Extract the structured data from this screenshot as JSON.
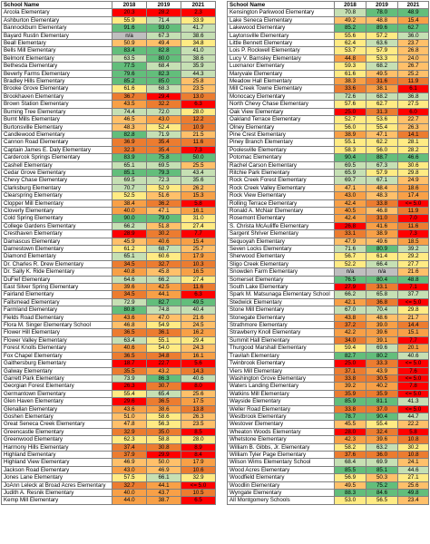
{
  "headers": {
    "name": "School Name",
    "y2018": "2018",
    "y2019": "2019",
    "y2021": "2021"
  },
  "colors": {
    "dark_green": "#63be7b",
    "light_green": "#c6e0b4",
    "yellow": "#ffeb84",
    "light_orange": "#ffc06a",
    "orange": "#f8a047",
    "dark_orange": "#ec7c30",
    "red": "#ff0000",
    "gray": "#bfbfbf"
  },
  "left": [
    {
      "name": "Arcola Elementary",
      "v18": "20.3",
      "v19": "28.2",
      "v21": "2.3"
    },
    {
      "name": "Ashburton Elementary",
      "v18": "55.9",
      "v19": "71.4",
      "v21": "33.9"
    },
    {
      "name": "Bannockburn Elementary",
      "v18": "91.6",
      "v19": "93.0",
      "v21": "41.7"
    },
    {
      "name": "Bayard Rustin Elementary",
      "v18": "n/a",
      "v19": "67.3",
      "v21": "38.6"
    },
    {
      "name": "Beall Elementary",
      "v18": "50.9",
      "v19": "49.4",
      "v21": "34.8"
    },
    {
      "name": "Bells Mill Elementary",
      "v18": "83.4",
      "v19": "82.8",
      "v21": "41.0"
    },
    {
      "name": "Belmont Elementary",
      "v18": "63.5",
      "v19": "80.0",
      "v21": "38.6"
    },
    {
      "name": "Bethesda Elementary",
      "v18": "77.5",
      "v19": "68.4",
      "v21": "35.9"
    },
    {
      "name": "Beverly Farms Elementary",
      "v18": "79.6",
      "v19": "82.3",
      "v21": "44.3"
    },
    {
      "name": "Bradley Hills Elementary",
      "v18": "85.2",
      "v19": "85.0",
      "v21": "25.8"
    },
    {
      "name": "Brooke Grove Elementary",
      "v18": "61.6",
      "v19": "68.3",
      "v21": "23.5"
    },
    {
      "name": "Brookhaven Elementary",
      "v18": "36.7",
      "v19": "29.4",
      "v21": "13.0"
    },
    {
      "name": "Brown Station Elementary",
      "v18": "43.5",
      "v19": "32.2",
      "v21": "6.3"
    },
    {
      "name": "Burning Tree Elementary",
      "v18": "74.4",
      "v19": "72.0",
      "v21": "28.0"
    },
    {
      "name": "Burnt Mills Elementary",
      "v18": "46.5",
      "v19": "43.0",
      "v21": "12.2"
    },
    {
      "name": "Burtonsville Elementary",
      "v18": "48.3",
      "v19": "52.4",
      "v21": "10.9"
    },
    {
      "name": "Candlewood Elementary",
      "v18": "82.8",
      "v19": "71.9",
      "v21": "21.5"
    },
    {
      "name": "Cannon Road Elementary",
      "v18": "36.9",
      "v19": "35.4",
      "v21": "11.6"
    },
    {
      "name": "Captain James E. Daly Elementary",
      "v18": "32.3",
      "v19": "35.4",
      "v21": "7.3"
    },
    {
      "name": "Cardercok Springs Elementary",
      "v18": "83.9",
      "v19": "75.8",
      "v21": "50.0"
    },
    {
      "name": "Cashell Elementary",
      "v18": "65.1",
      "v19": "69.5",
      "v21": "25.5"
    },
    {
      "name": "Cedar Grove Elementary",
      "v18": "85.1",
      "v19": "79.3",
      "v21": "43.4"
    },
    {
      "name": "Chevy Chase Elementary",
      "v18": "69.5",
      "v19": "72.3",
      "v21": "35.6"
    },
    {
      "name": "Clarksburg Elementary",
      "v18": "70.7",
      "v19": "52.9",
      "v21": "26.2"
    },
    {
      "name": "Clearspring Elementary",
      "v18": "52.5",
      "v19": "51.6",
      "v21": "15.3"
    },
    {
      "name": "Clopper Mill Elementary",
      "v18": "38.4",
      "v19": "36.2",
      "v21": "5.8"
    },
    {
      "name": "Cloverly Elementary",
      "v18": "40.0",
      "v19": "47.1",
      "v21": "16.1"
    },
    {
      "name": "Cold Spring Elementary",
      "v18": "90.0",
      "v19": "79.0",
      "v21": "31.0"
    },
    {
      "name": "College Gardens Elementary",
      "v18": "66.2",
      "v19": "51.8",
      "v21": "27.4"
    },
    {
      "name": "Cresthaven Elementary",
      "v18": "28.9",
      "v19": "30.2",
      "v21": "7.7"
    },
    {
      "name": "Damascus Elementary",
      "v18": "45.9",
      "v19": "40.6",
      "v21": "15.4"
    },
    {
      "name": "Darnestown Elementary",
      "v18": "61.2",
      "v19": "68.7",
      "v21": "25.7"
    },
    {
      "name": "Diamond Elementary",
      "v18": "65.1",
      "v19": "60.6",
      "v21": "17.9"
    },
    {
      "name": "Dr. Charles R. Drew Elementary",
      "v18": "34.5",
      "v19": "32.7",
      "v21": "10.3"
    },
    {
      "name": "Dr. Sally K. Ride Elementary",
      "v18": "40.8",
      "v19": "45.8",
      "v21": "16.5"
    },
    {
      "name": "DuFief Elementary",
      "v18": "64.6",
      "v19": "66.2",
      "v21": "27.4"
    },
    {
      "name": "East Silver Spring Elementary",
      "v18": "39.6",
      "v19": "42.5",
      "v21": "11.6"
    },
    {
      "name": "Fairland Elementary",
      "v18": "34.5",
      "v19": "44.1",
      "v21": "6.3"
    },
    {
      "name": "Fallsmead Elementary",
      "v18": "72.9",
      "v19": "82.7",
      "v21": "49.5"
    },
    {
      "name": "Farmland Elementary",
      "v18": "80.8",
      "v19": "74.8",
      "v21": "40.4"
    },
    {
      "name": "Fields Road Elementary",
      "v18": "43.6",
      "v19": "47.0",
      "v21": "21.6"
    },
    {
      "name": "Flora M. Singer Elementary School",
      "v18": "46.8",
      "v19": "54.9",
      "v21": "24.5"
    },
    {
      "name": "Flower Hill Elementary",
      "v18": "36.5",
      "v19": "36.1",
      "v21": "16.2"
    },
    {
      "name": "Flower Valley Elementary",
      "v18": "63.4",
      "v19": "55.1",
      "v21": "29.4"
    },
    {
      "name": "Forest Knolls Elementary",
      "v18": "40.6",
      "v19": "54.0",
      "v21": "24.3"
    },
    {
      "name": "Fox Chapel Elementary",
      "v18": "36.5",
      "v19": "34.8",
      "v21": "16.1"
    },
    {
      "name": "Gaithersburg Elementary",
      "v18": "18.7",
      "v19": "22.7",
      "v21": "5.6"
    },
    {
      "name": "Galway Elementary",
      "v18": "35.5",
      "v19": "43.2",
      "v21": "14.3"
    },
    {
      "name": "Garrett Park Elementary",
      "v18": "73.9",
      "v19": "86.3",
      "v21": "40.6"
    },
    {
      "name": "Georgian Forest Elementary",
      "v18": "26.3",
      "v19": "30.7",
      "v21": "8.0"
    },
    {
      "name": "Germantown Elementary",
      "v18": "55.4",
      "v19": "65.4",
      "v21": "25.6"
    },
    {
      "name": "Glen Haven Elementary",
      "v18": "29.6",
      "v19": "36.5",
      "v21": "17.5"
    },
    {
      "name": "Glenallan Elementary",
      "v18": "43.6",
      "v19": "38.6",
      "v21": "13.8"
    },
    {
      "name": "Goshen Elementary",
      "v18": "51.0",
      "v19": "58.6",
      "v21": "26.3"
    },
    {
      "name": "Great Seneca Creek Elementary",
      "v18": "47.8",
      "v19": "56.3",
      "v21": "23.5"
    },
    {
      "name": "Greencastle Elementary",
      "v18": "32.9",
      "v19": "35.0",
      "v21": "8.5"
    },
    {
      "name": "Greenwood Elementary",
      "v18": "62.3",
      "v19": "58.8",
      "v21": "28.0"
    },
    {
      "name": "Harmony Hills Elementary",
      "v18": "37.4",
      "v19": "30.8",
      "v21": "8.9"
    },
    {
      "name": "Highland Elementary",
      "v18": "37.9",
      "v19": "29.9",
      "v21": "8.4"
    },
    {
      "name": "Highland View Elementary",
      "v18": "46.9",
      "v19": "50.0",
      "v21": "17.9"
    },
    {
      "name": "Jackson Road Elementary",
      "v18": "43.0",
      "v19": "46.9",
      "v21": "10.6"
    },
    {
      "name": "Jones Lane Elementary",
      "v18": "57.5",
      "v19": "66.1",
      "v21": "32.9"
    },
    {
      "name": "JoAnn Leleck at Broad Acres Elementary",
      "v18": "32.7",
      "v19": "44.1",
      "v21": "<= 5.0"
    },
    {
      "name": "Judith A. Resnik Elementary",
      "v18": "40.0",
      "v19": "43.7",
      "v21": "10.5"
    },
    {
      "name": "Kemp Mill Elementary",
      "v18": "44.0",
      "v19": "38.7",
      "v21": "6.5"
    }
  ],
  "right": [
    {
      "name": "Kensington Parkwood Elementary",
      "v18": "70.8",
      "v19": "78.0",
      "v21": "48.9"
    },
    {
      "name": "Lake Seneca Elementary",
      "v18": "49.2",
      "v19": "48.8",
      "v21": "15.4"
    },
    {
      "name": "Lakewood Elementary",
      "v18": "85.2",
      "v19": "89.6",
      "v21": "62.7"
    },
    {
      "name": "Laytonsville Elementary",
      "v18": "55.6",
      "v19": "57.2",
      "v21": "36.0"
    },
    {
      "name": "Little Bennett Elementary",
      "v18": "62.4",
      "v19": "63.6",
      "v21": "23.7"
    },
    {
      "name": "Lois P. Rockwell Elementary",
      "v18": "53.7",
      "v19": "57.9",
      "v21": "26.8"
    },
    {
      "name": "Lucy V. Barnsley Elementary",
      "v18": "44.8",
      "v19": "53.3",
      "v21": "24.0"
    },
    {
      "name": "Luxmanor Elementary",
      "v18": "59.3",
      "v19": "68.2",
      "v21": "26.7"
    },
    {
      "name": "Maryvale Elementary",
      "v18": "61.6",
      "v19": "49.5",
      "v21": "25.2"
    },
    {
      "name": "Meadow Hall Elementary",
      "v18": "38.3",
      "v19": "31.6",
      "v21": "11.9"
    },
    {
      "name": "Mill Creek Towne Elementary",
      "v18": "33.6",
      "v19": "38.1",
      "v21": "6.1"
    },
    {
      "name": "Monocacy Elementary",
      "v18": "72.6",
      "v19": "68.2",
      "v21": "36.8"
    },
    {
      "name": "North Chevy Chase Elementary",
      "v18": "57.6",
      "v19": "62.7",
      "v21": "27.5"
    },
    {
      "name": "Oak View Elementary",
      "v18": "25.0",
      "v19": "31.3",
      "v21": "6.0"
    },
    {
      "name": "Oakland Terrace Elementary",
      "v18": "52.7",
      "v19": "53.6",
      "v21": "22.7"
    },
    {
      "name": "Olney Elementary",
      "v18": "56.0",
      "v19": "55.4",
      "v21": "26.3"
    },
    {
      "name": "Pine Crest Elementary",
      "v18": "38.9",
      "v19": "47.1",
      "v21": "14.1"
    },
    {
      "name": "Piney Branch Elementary",
      "v18": "55.1",
      "v19": "62.2",
      "v21": "28.1"
    },
    {
      "name": "Poolesville Elementary",
      "v18": "58.3",
      "v19": "56.0",
      "v21": "28.2"
    },
    {
      "name": "Potomac Elementary",
      "v18": "90.4",
      "v19": "88.7",
      "v21": "46.6"
    },
    {
      "name": "Rachel Carson Elementary",
      "v18": "69.5",
      "v19": "67.3",
      "v21": "30.6"
    },
    {
      "name": "Ritchie Park Elementary",
      "v18": "65.9",
      "v19": "57.9",
      "v21": "29.8"
    },
    {
      "name": "Rock Creek Forest Elementary",
      "v18": "69.7",
      "v19": "67.1",
      "v21": "24.9"
    },
    {
      "name": "Rock Creek Valley Elementary",
      "v18": "47.1",
      "v19": "48.4",
      "v21": "18.6"
    },
    {
      "name": "Rock View Elementary",
      "v18": "43.0",
      "v19": "48.3",
      "v21": "17.4"
    },
    {
      "name": "Rolling Terrace Elementary",
      "v18": "42.4",
      "v19": "33.8",
      "v21": "<= 5.0"
    },
    {
      "name": "Ronald A. McNair Elementary",
      "v18": "40.5",
      "v19": "46.8",
      "v21": "11.9"
    },
    {
      "name": "Rosemont Elementary",
      "v18": "42.4",
      "v19": "31.0",
      "v21": "7.0"
    },
    {
      "name": "S. Christa McAuliffe Elementary",
      "v18": "26.8",
      "v19": "41.6",
      "v21": "11.6"
    },
    {
      "name": "Sargent Shriver Elementary",
      "v18": "33.1",
      "v19": "38.9",
      "v21": "7.3"
    },
    {
      "name": "Sequoyah Elementary",
      "v18": "47.9",
      "v19": "49.6",
      "v21": "18.5"
    },
    {
      "name": "Seven Locks Elementary",
      "v18": "71.6",
      "v19": "80.9",
      "v21": "39.2"
    },
    {
      "name": "Sherwood Elementary",
      "v18": "56.7",
      "v19": "61.4",
      "v21": "29.2"
    },
    {
      "name": "Sligo Creek Elementary",
      "v18": "52.2",
      "v19": "66.4",
      "v21": "27.7"
    },
    {
      "name": "Snowden Farm Elementary",
      "v18": "n/a",
      "v19": "n/a",
      "v21": "21.6"
    },
    {
      "name": "Somerset Elementary",
      "v18": "76.5",
      "v19": "80.4",
      "v21": "48.8"
    },
    {
      "name": "South Lake Elementary",
      "v18": "27.9",
      "v19": "33.1",
      "v21": "7.1"
    },
    {
      "name": "Spark M. Matsunaga Elementary School",
      "v18": "66.2",
      "v19": "65.8",
      "v21": "37.7"
    },
    {
      "name": "Stedwick Elementary",
      "v18": "42.1",
      "v19": "36.8",
      "v21": "<= 5.0"
    },
    {
      "name": "Stone Mill Elementary",
      "v18": "67.0",
      "v19": "70.4",
      "v21": "29.8"
    },
    {
      "name": "Stonegate Elementary",
      "v18": "43.8",
      "v19": "48.6",
      "v21": "21.7"
    },
    {
      "name": "Strathmore Elementary",
      "v18": "37.2",
      "v19": "39.0",
      "v21": "14.4"
    },
    {
      "name": "Strawberry Knoll Elementary",
      "v18": "42.2",
      "v19": "39.6",
      "v21": "15.1"
    },
    {
      "name": "Summit Hall Elementary",
      "v18": "34.0",
      "v19": "39.1",
      "v21": "7.7"
    },
    {
      "name": "Thurgood Marshall Elementary",
      "v18": "59.4",
      "v19": "69.6",
      "v21": "20.1"
    },
    {
      "name": "Travilah Elementary",
      "v18": "82.7",
      "v19": "80.2",
      "v21": "40.6"
    },
    {
      "name": "Twinbrook Elementary",
      "v18": "25.0",
      "v19": "33.3",
      "v21": "<= 5.0"
    },
    {
      "name": "Viers Mill Elementary",
      "v18": "37.1",
      "v19": "43.9",
      "v21": "7.6"
    },
    {
      "name": "Washington Grove Elementary",
      "v18": "33.8",
      "v19": "30.5",
      "v21": "<= 5.0"
    },
    {
      "name": "Waters Landing Elementary",
      "v18": "39.2",
      "v19": "40.2",
      "v21": "7.8"
    },
    {
      "name": "Watkins Mill Elementary",
      "v18": "35.9",
      "v19": "35.9",
      "v21": "<= 5.0"
    },
    {
      "name": "Wayside Elementary",
      "v18": "85.9",
      "v19": "81.1",
      "v21": "41.3"
    },
    {
      "name": "Weller Road Elementary",
      "v18": "33.8",
      "v19": "37.0",
      "v21": "<= 5.0"
    },
    {
      "name": "Westbrook Elementary",
      "v18": "78.7",
      "v19": "90.4",
      "v21": "44.7"
    },
    {
      "name": "Westover Elementary",
      "v18": "45.5",
      "v19": "55.4",
      "v21": "22.2"
    },
    {
      "name": "Wheaton Woods Elementary",
      "v18": "28.0",
      "v19": "32.4",
      "v21": "5.8"
    },
    {
      "name": "Whetstone Elementary",
      "v18": "42.3",
      "v19": "39.6",
      "v21": "10.8"
    },
    {
      "name": "William B. Gibbs, Jr. Elementary",
      "v18": "58.2",
      "v19": "63.2",
      "v21": "30.2"
    },
    {
      "name": "William Tyler Page Elementary",
      "v18": "37.6",
      "v19": "36.0",
      "v21": "10.8"
    },
    {
      "name": "Wilson Wims Elementary School",
      "v18": "68.4",
      "v19": "69.9",
      "v21": "24.1"
    },
    {
      "name": "Wood Acres Elementary",
      "v18": "85.5",
      "v19": "85.1",
      "v21": "44.6"
    },
    {
      "name": "Woodfield Elementary",
      "v18": "56.9",
      "v19": "50.3",
      "v21": "27.1"
    },
    {
      "name": "Woodlin Elementary",
      "v18": "49.5",
      "v19": "75.2",
      "v21": "25.6"
    },
    {
      "name": "Wyngate Elementary",
      "v18": "88.3",
      "v19": "84.6",
      "v21": "49.8"
    },
    {
      "name": "All Montgomery Schools",
      "v18": "53.0",
      "v19": "56.5",
      "v21": "23.4"
    }
  ]
}
